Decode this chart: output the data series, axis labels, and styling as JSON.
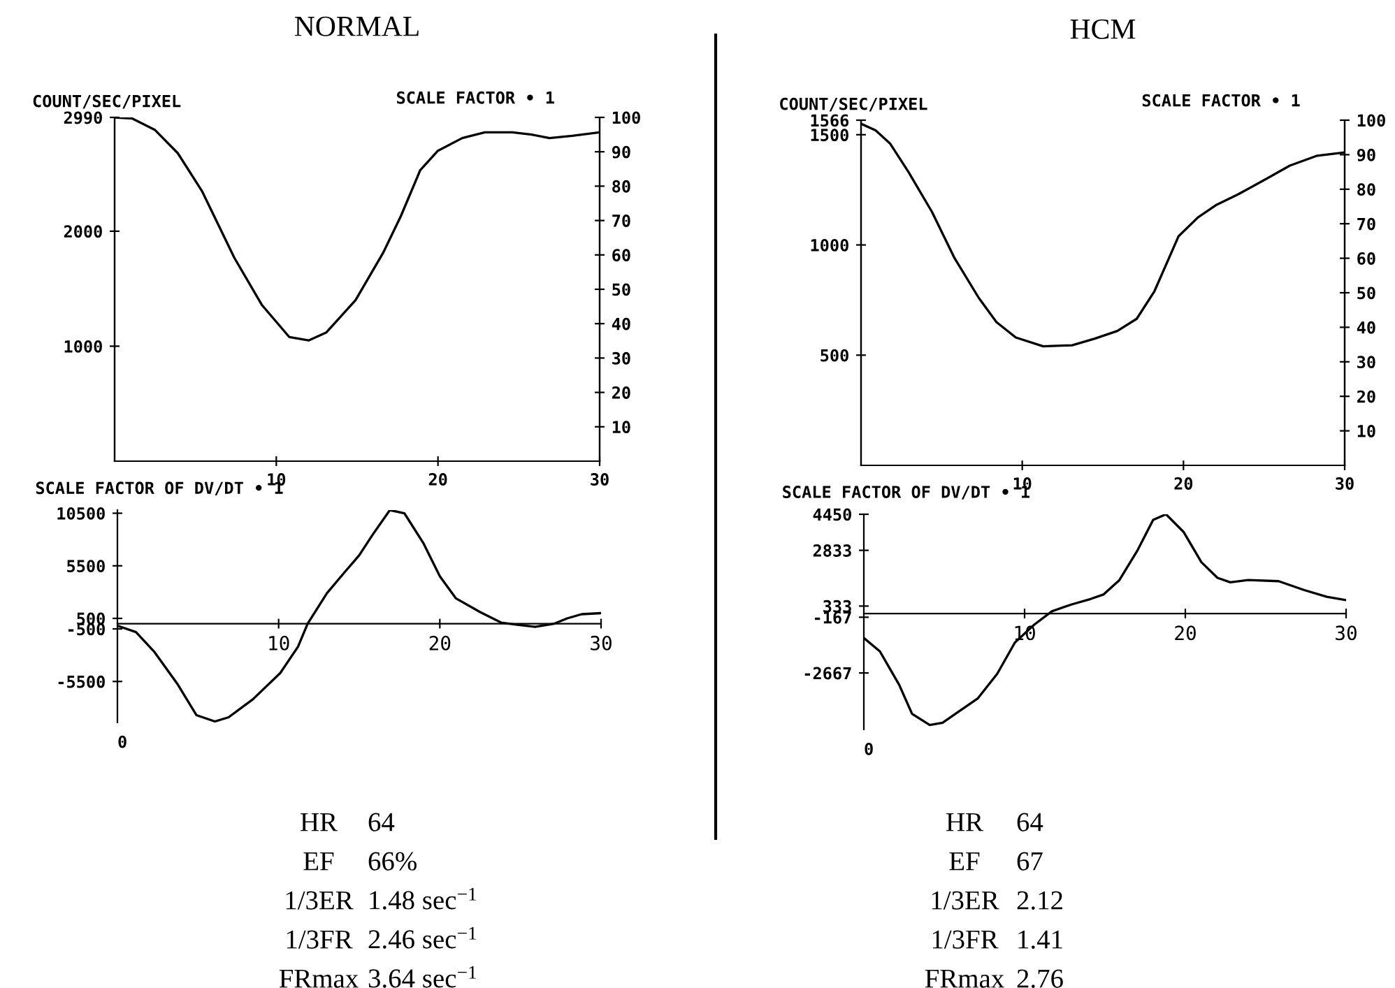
{
  "chart_data": [
    {
      "type": "line",
      "title": "NORMAL",
      "subtitle": "SCALE FACTOR • 1",
      "ylabel": "COUNT/SEC/PIXEL",
      "x": [
        0,
        1.1,
        2.5,
        3.9,
        5.4,
        7.4,
        9.1,
        10.8,
        12,
        13.1,
        14.9,
        16.6,
        17.7,
        18.9,
        20,
        21.5,
        22.9,
        24.6,
        25.8,
        26.9,
        28.3,
        30
      ],
      "series": [
        {
          "color": "#000000",
          "values": [
            2990,
            2980,
            2880,
            2680,
            2350,
            1770,
            1360,
            1080,
            1050,
            1120,
            1400,
            1810,
            2130,
            2530,
            2700,
            2810,
            2860,
            2860,
            2840,
            2810,
            2830,
            2860
          ]
        }
      ],
      "xlim": [
        0,
        30
      ],
      "xticks": [
        10,
        20,
        30
      ],
      "ylim": [
        0,
        2990
      ],
      "yticks": [
        1000,
        2000,
        2990
      ],
      "y2lim": [
        0,
        100
      ],
      "y2ticks": [
        10,
        20,
        30,
        40,
        50,
        60,
        70,
        80,
        90,
        100
      ],
      "grid": false,
      "legend": false
    },
    {
      "type": "line",
      "subtitle": "SCALE FACTOR OF DV/DT • 1",
      "x": [
        0,
        1.15,
        2.3,
        3.75,
        4.9,
        6.05,
        6.9,
        8.4,
        10.1,
        11.2,
        11.8,
        13,
        14.1,
        15,
        15.85,
        16.9,
        17.8,
        19,
        20,
        21,
        22.5,
        23.8,
        24.8,
        25.9,
        27.1,
        27.9,
        28.8,
        30
      ],
      "series": [
        {
          "color": "#000000",
          "values": [
            -200,
            -800,
            -2700,
            -5800,
            -8700,
            -9300,
            -8900,
            -7200,
            -4700,
            -2200,
            0,
            2900,
            4900,
            6500,
            8500,
            10800,
            10500,
            7600,
            4500,
            2400,
            1100,
            100,
            -100,
            -300,
            0,
            500,
            900,
            1000
          ]
        }
      ],
      "xlim": [
        0,
        30
      ],
      "xticks": [
        10,
        20,
        30
      ],
      "ylim": [
        -9400,
        10800
      ],
      "yticks": [
        -5500,
        -500,
        500,
        5500,
        10500
      ],
      "grid": false,
      "legend": false,
      "annotations": [
        "0",
        "HR",
        "64",
        "EF",
        "66%",
        "1/3ER",
        "1.48 sec$^{−1}$",
        "1/3FR",
        "2.46 sec$^{−1}$",
        "FRmax",
        "3.64 sec$^{−1}$"
      ]
    },
    {
      "type": "line",
      "title": "HCM",
      "subtitle": "SCALE FACTOR • 1",
      "ylabel": "COUNT/SEC/PIXEL",
      "x": [
        0,
        0.9,
        1.8,
        2.95,
        4.4,
        5.8,
        7.3,
        8.4,
        9.6,
        11.3,
        13.1,
        14.5,
        15.9,
        17.1,
        18.2,
        19.7,
        20.9,
        22,
        23.4,
        24.9,
        26.6,
        28.3,
        30
      ],
      "series": [
        {
          "color": "#000000",
          "values": [
            1550,
            1520,
            1460,
            1330,
            1150,
            940,
            760,
            650,
            580,
            540,
            545,
            575,
            610,
            665,
            790,
            1040,
            1125,
            1180,
            1230,
            1290,
            1360,
            1405,
            1420
          ]
        }
      ],
      "xlim": [
        0,
        30
      ],
      "xticks": [
        10,
        20,
        30
      ],
      "ylim": [
        0,
        1566
      ],
      "yticks": [
        500,
        1000,
        1500,
        1566
      ],
      "y2lim": [
        0,
        100
      ],
      "y2ticks": [
        10,
        20,
        30,
        40,
        50,
        60,
        70,
        80,
        90,
        100
      ],
      "grid": false,
      "legend": false
    },
    {
      "type": "line",
      "subtitle": "SCALE FACTOR OF DV/DT • 1",
      "x": [
        0,
        1,
        2.2,
        3,
        4.1,
        4.9,
        5.9,
        7.1,
        8.3,
        9.4,
        10.6,
        11.7,
        12.9,
        14.1,
        14.9,
        15.9,
        17,
        18,
        18.8,
        19.9,
        21,
        22,
        22.8,
        23.9,
        25.8,
        27.4,
        28.8,
        30
      ],
      "series": [
        {
          "color": "#000000",
          "values": [
            -1100,
            -1700,
            -3200,
            -4500,
            -5000,
            -4900,
            -4400,
            -3800,
            -2700,
            -1300,
            -500,
            100,
            400,
            650,
            850,
            1500,
            2800,
            4200,
            4450,
            3650,
            2300,
            1600,
            1400,
            1500,
            1450,
            1050,
            750,
            600
          ]
        }
      ],
      "xlim": [
        0,
        30
      ],
      "xticks": [
        10,
        20,
        30
      ],
      "ylim": [
        -5200,
        4450
      ],
      "yticks": [
        -2667,
        -167,
        333,
        2833,
        4450
      ],
      "grid": false,
      "legend": false,
      "annotations": [
        "0",
        "HR",
        "64",
        "EF",
        "67",
        "1/3ER",
        "2.12",
        "1/3FR",
        "1.41",
        "FRmax",
        "2.76"
      ]
    }
  ]
}
